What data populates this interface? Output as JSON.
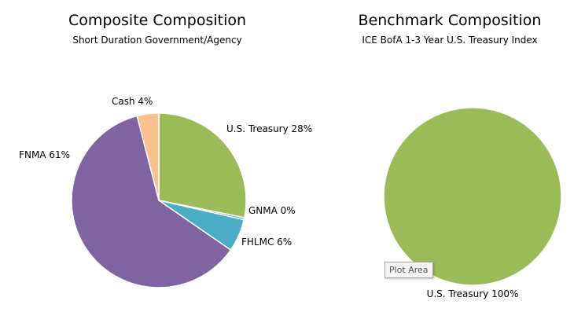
{
  "tooltip_text": "Plot Area",
  "chart_data": [
    {
      "type": "pie",
      "title": "Composite Composition",
      "subtitle": "Short Duration Government/Agency",
      "slices": [
        {
          "label": "U.S. Treasury 28%",
          "name": "U.S. Treasury",
          "value": 28,
          "color": "#9bbb59"
        },
        {
          "label": "GNMA 0%",
          "name": "GNMA",
          "value": 0.4,
          "color": "#4bacc6"
        },
        {
          "label": "FHLMC 6%",
          "name": "FHLMC",
          "value": 6,
          "color": "#4bacc6"
        },
        {
          "label": "FNMA 61%",
          "name": "FNMA",
          "value": 61,
          "color": "#8064a2"
        },
        {
          "label": "Cash 4%",
          "name": "Cash",
          "value": 4,
          "color": "#fac090"
        }
      ]
    },
    {
      "type": "pie",
      "title": "Benchmark Composition",
      "subtitle": "ICE BofA 1-3 Year U.S. Treasury Index",
      "slices": [
        {
          "label": "U.S. Treasury 100%",
          "name": "U.S. Treasury",
          "value": 100,
          "color": "#9bbb59"
        }
      ]
    }
  ]
}
